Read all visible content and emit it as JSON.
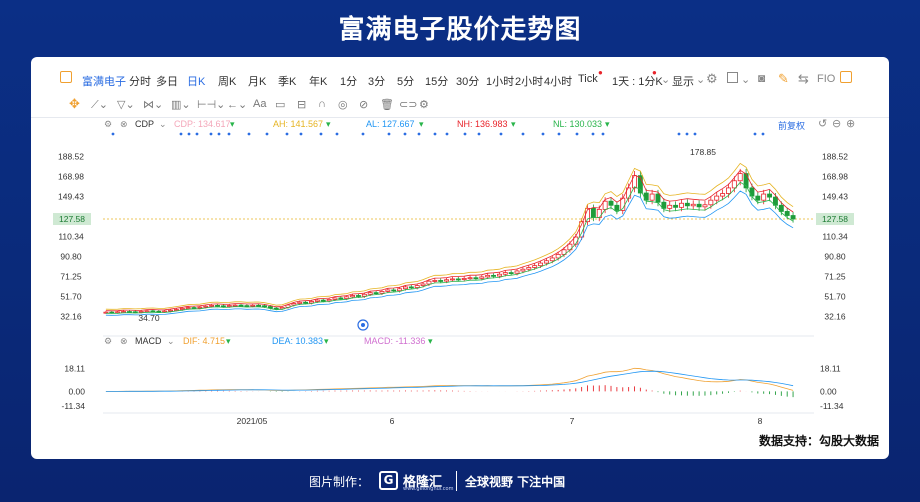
{
  "title": "富满电子股价走势图",
  "toolbar": {
    "stock_name": "富满电子",
    "periods": [
      "分时",
      "多日",
      "日K",
      "周K",
      "月K",
      "季K",
      "年K",
      "1分",
      "3分",
      "5分",
      "15分",
      "30分",
      "1小时",
      "2小时",
      "4小时",
      "Tick"
    ],
    "active_period": "日K",
    "ratio": "1天 : 1分K",
    "display": "显示",
    "fio": "FIO"
  },
  "drawing_tools": {
    "text_tool": "Aa"
  },
  "indicator": {
    "name": "CDP",
    "cdp": "CDP: 134.617",
    "ah": "AH: 141.567",
    "al": "AL: 127.667",
    "nh": "NH: 136.983",
    "nl": "NL: 130.033",
    "adjust": "前复权",
    "colors": {
      "cdp": "#f4a7b9",
      "ah": "#e6b422",
      "al": "#2196f3",
      "nh": "#e8242b",
      "nl": "#28b44a"
    }
  },
  "macd": {
    "name": "MACD",
    "dif": "DIF: 4.715",
    "dea": "DEA: 10.383",
    "macd": "MACD: -11.336",
    "colors": {
      "dif": "#f0a030",
      "dea": "#2196f3",
      "macd": "#d070d0"
    }
  },
  "source": "数据支持：勾股大数据",
  "footer": {
    "credit": "图片制作：",
    "logo_mark": "G",
    "logo_name": "格隆汇",
    "logo_url": "www.gelonghui.com",
    "slogan": "全球视野 下注中国"
  },
  "chart_data": {
    "type": "candlestick",
    "y_ticks": [
      "188.52",
      "168.98",
      "149.43",
      "127.58",
      "110.34",
      "90.80",
      "71.25",
      "51.70",
      "32.16"
    ],
    "y_range": [
      22,
      198
    ],
    "current_price": "127.58",
    "high_label": "178.85",
    "low_label": "34.70",
    "x_labels": [
      "2021/05",
      "6",
      "7",
      "8"
    ],
    "macd_ticks": [
      "18.11",
      "0.00",
      "-11.34"
    ],
    "macd_range": [
      -17,
      27
    ],
    "series_close": [
      36.5,
      36.2,
      36.8,
      37.1,
      36.9,
      36.6,
      37.2,
      37.8,
      37.4,
      37.0,
      37.6,
      38.5,
      39.1,
      40.2,
      41.0,
      40.6,
      41.5,
      42.3,
      43.1,
      42.7,
      42.2,
      43.0,
      43.4,
      42.9,
      42.6,
      43.2,
      42.8,
      42.0,
      40.5,
      39.8,
      41.2,
      43.5,
      45.0,
      46.2,
      45.5,
      47.0,
      48.3,
      47.6,
      49.0,
      50.4,
      49.8,
      51.5,
      52.8,
      52.1,
      54.0,
      55.6,
      55.0,
      56.8,
      58.2,
      57.5,
      59.4,
      61.2,
      60.6,
      62.5,
      64.0,
      66.8,
      67.5,
      66.9,
      68.2,
      69.0,
      68.4,
      69.5,
      70.2,
      69.6,
      71.0,
      72.5,
      71.8,
      73.6,
      75.2,
      74.6,
      76.8,
      78.5,
      80.2,
      82.0,
      84.5,
      86.8,
      89.5,
      93.0,
      97.5,
      103.0,
      110.0,
      125.0,
      138.0,
      129.0,
      137.0,
      145.0,
      141.0,
      136.0,
      148.0,
      158.0,
      170.0,
      153.0,
      146.0,
      152.0,
      144.0,
      138.0,
      141.0,
      139.0,
      143.0,
      140.5,
      142.0,
      139.5,
      141.5,
      146.0,
      150.0,
      152.5,
      158.0,
      165.0,
      172.0,
      158.0,
      150.0,
      146.0,
      152.0,
      149.0,
      141.0,
      135.0,
      131.0,
      127.58
    ]
  }
}
